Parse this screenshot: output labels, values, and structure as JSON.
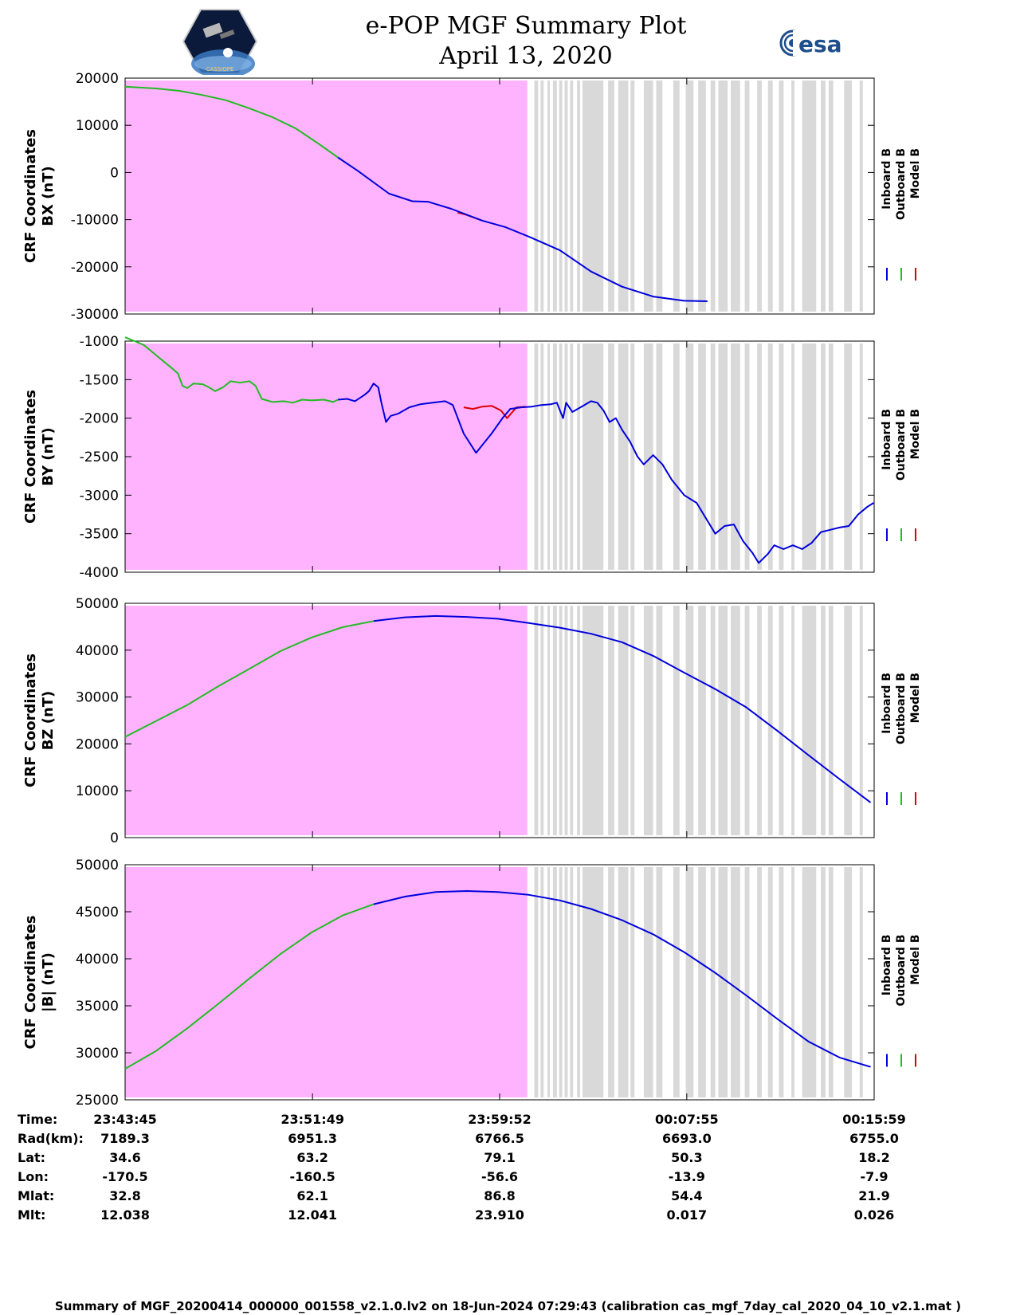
{
  "header": {
    "title_line1": "e-POP MGF Summary Plot",
    "title_line2": "April 13, 2020",
    "esa_logo_text": "esa",
    "epop_logo_text": "CASSIOPE"
  },
  "colors": {
    "inboard": "#0000dd",
    "outboard": "#22bb22",
    "model": "#dd0000",
    "pink_region": "#ffb3ff",
    "gray_band": "#d9d9d9"
  },
  "legend": {
    "inboard": "Inboard B",
    "outboard": "Outboard B",
    "model": "Model B"
  },
  "chart_data": [
    {
      "type": "line",
      "title": "",
      "ylabel_line1": "CRF Coordinates",
      "ylabel_line2": "BX (nT)",
      "ylim": [
        -30000,
        20000
      ],
      "yticks": [
        20000,
        10000,
        0,
        -10000,
        -20000,
        -30000
      ],
      "xlim_min": [
        0,
        32.23
      ],
      "outboard": [
        [
          0,
          18200
        ],
        [
          2,
          17800
        ],
        [
          3.5,
          17300
        ],
        [
          5,
          16400
        ],
        [
          6.5,
          15300
        ],
        [
          8,
          13600
        ],
        [
          9.5,
          11700
        ],
        [
          11,
          9300
        ],
        [
          12.5,
          6000
        ],
        [
          13.7,
          3200
        ]
      ],
      "inboard": [
        [
          13.7,
          3200
        ],
        [
          15,
          300
        ],
        [
          17,
          -4500
        ],
        [
          18.5,
          -6100
        ],
        [
          19.5,
          -6200
        ],
        [
          21,
          -7700
        ],
        [
          23,
          -10200
        ],
        [
          24.5,
          -11600
        ],
        [
          26,
          -13600
        ],
        [
          28,
          -16500
        ],
        [
          30,
          -21000
        ],
        [
          32,
          -24200
        ],
        [
          34,
          -26300
        ],
        [
          36,
          -27200
        ],
        [
          37.5,
          -27300
        ]
      ],
      "model": [
        [
          21.4,
          -8500
        ],
        [
          21.9,
          -8900
        ],
        [
          22.4,
          -9500
        ],
        [
          22.9,
          -10100
        ]
      ]
    },
    {
      "type": "line",
      "title": "",
      "ylabel_line1": "CRF Coordinates",
      "ylabel_line2": "BY (nT)",
      "ylim": [
        -4000,
        -1000
      ],
      "yticks": [
        -1000,
        -1500,
        -2000,
        -2500,
        -3000,
        -3500,
        -4000
      ],
      "outboard": [
        [
          0,
          -950
        ],
        [
          0.6,
          -1000
        ],
        [
          1.2,
          -1050
        ],
        [
          1.8,
          -1150
        ],
        [
          2.4,
          -1250
        ],
        [
          3.0,
          -1350
        ],
        [
          3.4,
          -1420
        ],
        [
          3.7,
          -1580
        ],
        [
          4.0,
          -1610
        ],
        [
          4.4,
          -1550
        ],
        [
          5.0,
          -1560
        ],
        [
          5.4,
          -1600
        ],
        [
          5.8,
          -1650
        ],
        [
          6.3,
          -1600
        ],
        [
          6.8,
          -1520
        ],
        [
          7.4,
          -1540
        ],
        [
          8.0,
          -1520
        ],
        [
          8.4,
          -1580
        ],
        [
          8.8,
          -1750
        ],
        [
          9.5,
          -1790
        ],
        [
          10.2,
          -1780
        ],
        [
          10.8,
          -1800
        ],
        [
          11.4,
          -1760
        ],
        [
          12.0,
          -1770
        ],
        [
          12.8,
          -1760
        ],
        [
          13.4,
          -1790
        ],
        [
          13.7,
          -1760
        ]
      ],
      "inboard": [
        [
          13.7,
          -1760
        ],
        [
          14.3,
          -1750
        ],
        [
          14.8,
          -1780
        ],
        [
          15.4,
          -1700
        ],
        [
          15.7,
          -1650
        ],
        [
          16.0,
          -1550
        ],
        [
          16.3,
          -1600
        ],
        [
          16.5,
          -1800
        ],
        [
          16.8,
          -2050
        ],
        [
          17.1,
          -1970
        ],
        [
          17.6,
          -1940
        ],
        [
          18.3,
          -1860
        ],
        [
          19.0,
          -1820
        ],
        [
          19.8,
          -1800
        ],
        [
          20.6,
          -1780
        ],
        [
          21.1,
          -1830
        ],
        [
          21.8,
          -2200
        ],
        [
          22.6,
          -2450
        ],
        [
          23.0,
          -2350
        ],
        [
          23.6,
          -2200
        ],
        [
          24.3,
          -2000
        ],
        [
          24.8,
          -1880
        ],
        [
          25.5,
          -1860
        ],
        [
          26.2,
          -1850
        ],
        [
          26.8,
          -1830
        ],
        [
          27.4,
          -1820
        ],
        [
          27.8,
          -1800
        ],
        [
          28.2,
          -2000
        ],
        [
          28.4,
          -1800
        ],
        [
          28.8,
          -1920
        ],
        [
          29.4,
          -1850
        ],
        [
          30.0,
          -1780
        ],
        [
          30.4,
          -1800
        ],
        [
          30.8,
          -1900
        ],
        [
          31.2,
          -2050
        ],
        [
          31.6,
          -2000
        ],
        [
          32.0,
          -2150
        ],
        [
          32.5,
          -2300
        ],
        [
          33.0,
          -2500
        ],
        [
          33.4,
          -2600
        ],
        [
          34.0,
          -2480
        ],
        [
          34.6,
          -2600
        ],
        [
          35.2,
          -2800
        ],
        [
          36.0,
          -3000
        ],
        [
          36.8,
          -3100
        ],
        [
          37.4,
          -3300
        ],
        [
          38.0,
          -3500
        ],
        [
          38.6,
          -3400
        ],
        [
          39.2,
          -3380
        ],
        [
          39.8,
          -3600
        ],
        [
          40.4,
          -3750
        ],
        [
          40.8,
          -3880
        ],
        [
          41.4,
          -3760
        ],
        [
          41.8,
          -3650
        ],
        [
          42.4,
          -3700
        ],
        [
          43.0,
          -3650
        ],
        [
          43.6,
          -3700
        ],
        [
          44.2,
          -3620
        ],
        [
          44.8,
          -3480
        ],
        [
          45.4,
          -3450
        ],
        [
          46.0,
          -3420
        ],
        [
          46.6,
          -3400
        ],
        [
          47.2,
          -3250
        ],
        [
          47.8,
          -3150
        ],
        [
          48.2,
          -3100
        ]
      ],
      "model": [
        [
          21.8,
          -1860
        ],
        [
          22.4,
          -1880
        ],
        [
          23.0,
          -1850
        ],
        [
          23.6,
          -1840
        ],
        [
          24.2,
          -1900
        ],
        [
          24.6,
          -2000
        ],
        [
          25.2,
          -1860
        ],
        [
          25.8,
          -1850
        ]
      ]
    },
    {
      "type": "line",
      "title": "",
      "ylabel_line1": "CRF Coordinates",
      "ylabel_line2": "BZ (nT)",
      "ylim": [
        0,
        50000
      ],
      "yticks": [
        50000,
        40000,
        30000,
        20000,
        10000,
        0
      ],
      "outboard": [
        [
          0,
          21500
        ],
        [
          2,
          24900
        ],
        [
          4,
          28300
        ],
        [
          6,
          32300
        ],
        [
          8,
          36000
        ],
        [
          10,
          39800
        ],
        [
          12,
          42700
        ],
        [
          14,
          44900
        ],
        [
          16,
          46200
        ]
      ],
      "inboard": [
        [
          16,
          46200
        ],
        [
          18,
          47000
        ],
        [
          20,
          47300
        ],
        [
          22,
          47100
        ],
        [
          24,
          46700
        ],
        [
          26,
          45800
        ],
        [
          28,
          44800
        ],
        [
          30,
          43500
        ],
        [
          32,
          41700
        ],
        [
          34,
          38800
        ],
        [
          36,
          35200
        ],
        [
          38,
          31700
        ],
        [
          40,
          27800
        ],
        [
          42,
          22800
        ],
        [
          44,
          17600
        ],
        [
          46,
          12500
        ],
        [
          48,
          7500
        ]
      ],
      "model": []
    },
    {
      "type": "line",
      "title": "",
      "ylabel_line1": "CRF Coordinates",
      "ylabel_line2": "|B| (nT)",
      "ylim": [
        25000,
        50000
      ],
      "yticks": [
        50000,
        45000,
        40000,
        35000,
        30000,
        25000
      ],
      "outboard": [
        [
          0,
          28300
        ],
        [
          2,
          30200
        ],
        [
          4,
          32600
        ],
        [
          6,
          35200
        ],
        [
          8,
          37900
        ],
        [
          10,
          40500
        ],
        [
          12,
          42800
        ],
        [
          14,
          44600
        ],
        [
          16,
          45800
        ]
      ],
      "inboard": [
        [
          16,
          45800
        ],
        [
          18,
          46600
        ],
        [
          20,
          47100
        ],
        [
          22,
          47200
        ],
        [
          24,
          47100
        ],
        [
          26,
          46800
        ],
        [
          28,
          46200
        ],
        [
          30,
          45300
        ],
        [
          32,
          44100
        ],
        [
          34,
          42600
        ],
        [
          36,
          40700
        ],
        [
          38,
          38500
        ],
        [
          40,
          36100
        ],
        [
          42,
          33600
        ],
        [
          44,
          31200
        ],
        [
          46,
          29500
        ],
        [
          48,
          28500
        ]
      ],
      "model": []
    }
  ],
  "x_axis": {
    "min": 0,
    "max": 48.233,
    "ticks": [
      0,
      12.067,
      24.117,
      36.167,
      48.233
    ],
    "pink_end": 25.9,
    "gray_bands": [
      [
        26.35,
        26.6
      ],
      [
        26.75,
        26.95
      ],
      [
        27.2,
        27.35
      ],
      [
        27.55,
        27.8
      ],
      [
        27.95,
        28.15
      ],
      [
        28.3,
        28.5
      ],
      [
        28.65,
        28.85
      ],
      [
        29.1,
        29.3
      ],
      [
        29.45,
        30.8
      ],
      [
        31.1,
        31.5
      ],
      [
        31.75,
        32.4
      ],
      [
        32.55,
        32.8
      ],
      [
        33.4,
        34.0
      ],
      [
        34.2,
        34.6
      ],
      [
        35.3,
        35.7
      ],
      [
        36.1,
        36.6
      ],
      [
        36.9,
        37.4
      ],
      [
        37.7,
        38.0
      ],
      [
        38.2,
        38.8
      ],
      [
        39.0,
        39.6
      ],
      [
        39.9,
        40.2
      ],
      [
        40.7,
        41.0
      ],
      [
        41.4,
        41.7
      ],
      [
        42.1,
        42.4
      ],
      [
        42.9,
        43.1
      ],
      [
        43.6,
        44.5
      ],
      [
        44.8,
        45.1
      ],
      [
        45.3,
        45.6
      ],
      [
        46.3,
        46.8
      ],
      [
        47.3,
        47.5
      ]
    ]
  },
  "info_table": {
    "labels": [
      "Time:",
      "Rad(km):",
      "Lat:",
      "Lon:",
      "Mlat:",
      "Mlt:"
    ],
    "columns": [
      [
        "23:43:45",
        "7189.3",
        "34.6",
        "-170.5",
        "32.8",
        "12.038"
      ],
      [
        "23:51:49",
        "6951.3",
        "63.2",
        "-160.5",
        "62.1",
        "12.041"
      ],
      [
        "23:59:52",
        "6766.5",
        "79.1",
        "-56.6",
        "86.8",
        "23.910"
      ],
      [
        "00:07:55",
        "6693.0",
        "50.3",
        "-13.9",
        "54.4",
        "0.017"
      ],
      [
        "00:15:59",
        "6755.0",
        "18.2",
        "-7.9",
        "21.9",
        "0.026"
      ]
    ]
  },
  "footer": {
    "text": "Summary of MGF_20200414_000000_001558_v2.1.0.lv2 on 18-Jun-2024 07:29:43 (calibration cas_mgf_7day_cal_2020_04_10_v2.1.mat )"
  }
}
